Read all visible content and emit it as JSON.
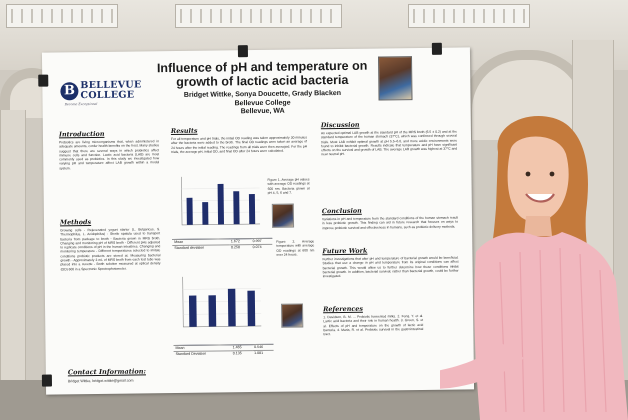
{
  "poster": {
    "title": "Influence of pH and temperature on growth of lactic acid bacteria",
    "authors": "Bridget Wittke, Sonya Doucette, Grady Blacken",
    "college": "Bellevue College",
    "location": "Bellevue, WA",
    "logo": {
      "mark": "B",
      "word": "BELLEVUE COLLEGE",
      "tagline": "Become Exceptional"
    },
    "sections": {
      "introduction": "Introduction",
      "methods": "Methods",
      "results": "Results",
      "discussion": "Discussion",
      "conclusion": "Conclusion",
      "future_work": "Future Work",
      "references": "References",
      "contact": "Contact Information:"
    },
    "contact_email": "Bridget Wittke, bridget.wittke@gmail.com",
    "body_text": {
      "intro": "Probiotics are living microorganisms that, when administered in adequate amounts, confer health benefits on the host. Many studies suggest that there are several ways in which probiotics affect immune cells and function. Lactic acid bacteria (LAB) are most commonly used as probiotics. In this study we investigated how varying pH and temperature affect LAB growth within a model system.",
      "methods": "Growing cells - Rejuvenated yogurt starter (L. Bulgaricus, S. Thermophilus, L. Acidophilus) - Sterile spatula used to transport bacteria from package to broth - Bacteria grown in MRS broth. Changing and monitoring pH of MRS broth - Different pHs adjusted to replicate conditions of pH in the human intestines. Changing and monitoring temperature - Different temperatures selected to imitate conditions probiotic products are stored at. Measuring bacterial growth - Approximately 3 mL of MRS broth from each test tube was placed into a cuvette - Broth solution measured at optical density (OD) 600 in a Spectronic Spectrophotometer.",
      "results": "For all temperature and pH trials, the initial OD reading was taken approximately 30 minutes after the bacteria were added to the broth. The final OD readings were taken an average of 24 hours after the initial reading. The readings from all trials were then averaged. For the pH trials, the average pH, initial OD, and final OD after 24 hours were calculated.",
      "fig1": "Figure 1. Average pH values with average OD readings at 600 nm. Bacteria grown at pH 4, 5, 6 and 7.",
      "fig2": "Figure 2. Average temperature with average OD readings at 600 nm over 24 hours.",
      "discussion": "An expected optimal LAB growth at the standard pH of the MRS broth (6.5 ± 0.2) and at the standard temperature of the human stomach (37°C), which was confirmed through several trials. Most LAB exhibit optimal growth at pH 5.5–6.0, and more acidic environments were found to inhibit bacterial growth. Results indicate that temperature and pH have significant effects on the survival and growth of LAB. The average LAB growth was highest at 37°C and near neutral pH.",
      "conclusion": "Variations in pH and temperature from the standard conditions of the human stomach result in less probiotic growth. This finding can aid in future research that focuses on ways to improve probiotic survival and effectiveness in humans, such as probiotic delivery methods.",
      "future": "Further investigations that alter pH and temperature of bacterial growth would be beneficial. Studies that use a change in pH and temperature from its original conditions can affect bacterial growth. This would allow us to further determine how these conditions inhibit bacterial growth. In addition, bacterial survival, rather than bacterial growth, could be further investigated.",
      "refs": "1. Davidson, B. M. ... Probiotic fermented milks. 2. Feng, Y. et al. Lactic acid bacteria and their role in human health. 3. Green, S. et al. Effects of pH and temperature on the growth of lactic acid bacteria. 4. Maria, R. et al. Probiotic survival in the gastrointestinal tract."
    },
    "stats_table_1": {
      "headers": [
        "",
        "",
        ""
      ],
      "rows": [
        [
          "Mean",
          "1.672",
          "0.997"
        ],
        [
          "Standard deviation",
          "0.258",
          "0.074"
        ]
      ]
    },
    "stats_table_2": {
      "headers": [
        "",
        "",
        ""
      ],
      "rows": [
        [
          "Mean",
          "1.465",
          "0.546"
        ],
        [
          "Standard Deviation",
          "0.135",
          "1.081"
        ]
      ]
    }
  },
  "chart_data": [
    {
      "type": "bar",
      "categories": [
        "1",
        "2",
        "3",
        "4",
        "5"
      ],
      "values": [
        0.9,
        0.75,
        1.35,
        1.1,
        1.0
      ],
      "title": "",
      "xlabel": "",
      "ylabel": "",
      "ylim": [
        0,
        1.6
      ]
    },
    {
      "type": "bar",
      "categories": [
        "1",
        "2",
        "3",
        "4"
      ],
      "values": [
        0.75,
        0.75,
        0.9,
        0.85
      ],
      "title": "",
      "xlabel": "",
      "ylabel": "",
      "ylim": [
        0,
        1.2
      ]
    }
  ],
  "colors": {
    "bar": "#1f2d6b",
    "brand": "#1c2f68",
    "shirt": "#f1b8bf"
  }
}
